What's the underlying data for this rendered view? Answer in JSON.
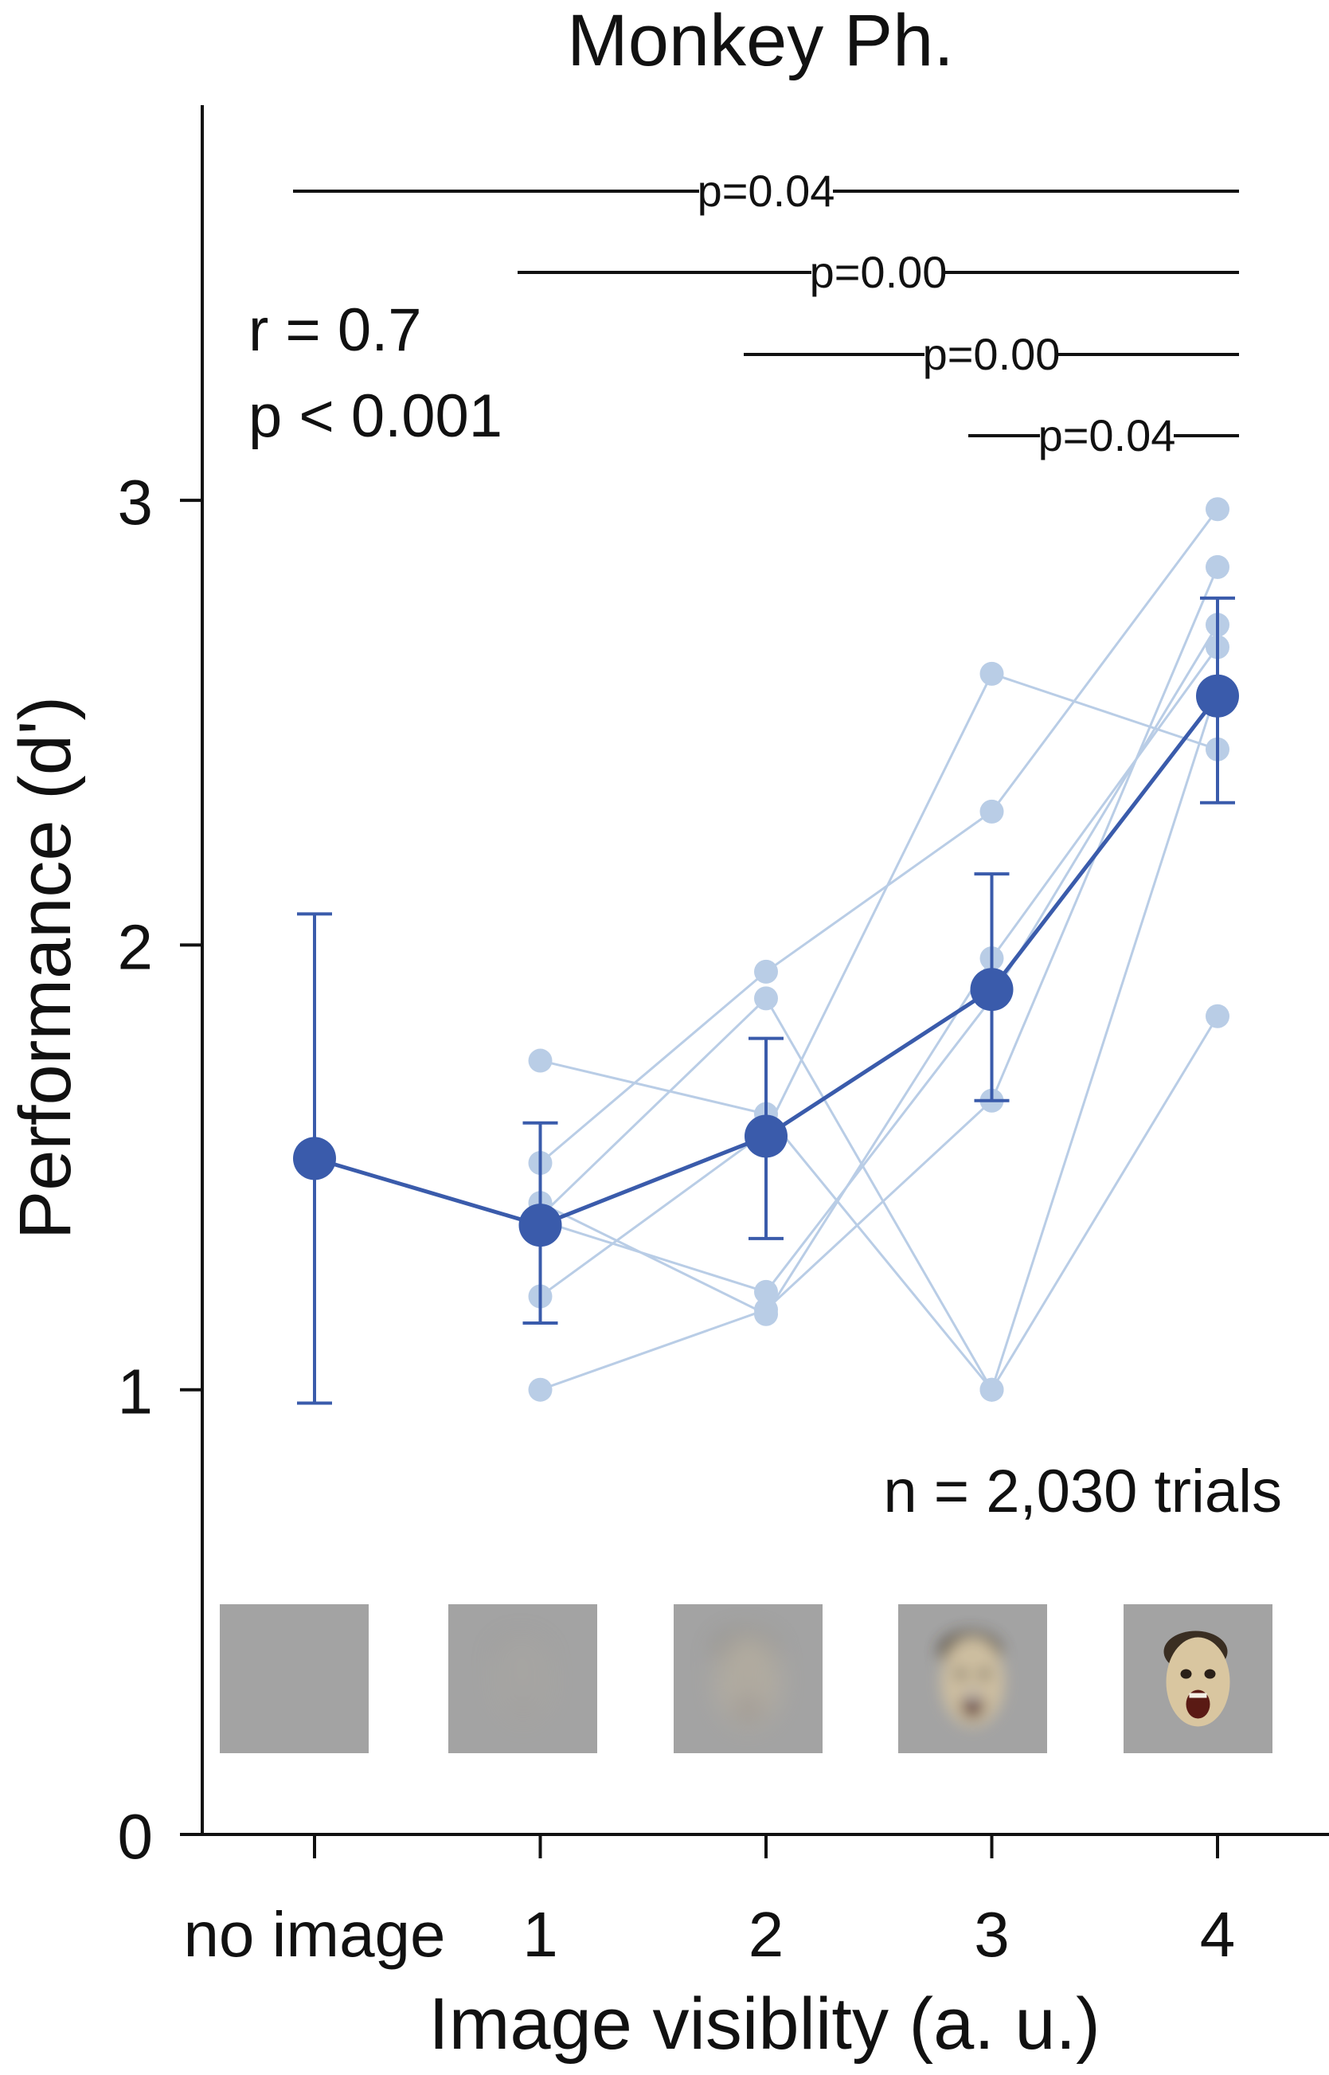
{
  "chart_data": {
    "type": "line",
    "title": "Monkey Ph.",
    "xlabel": "Image visiblity (a. u.)",
    "ylabel": "Performance (d')",
    "categories": [
      "no image",
      "1",
      "2",
      "3",
      "4"
    ],
    "yticks": [
      0,
      1,
      2,
      3
    ],
    "ytick_labels": [
      "0",
      "1",
      "2",
      "3"
    ],
    "ylim": [
      0,
      3.9
    ],
    "grid": false,
    "mean": {
      "values": [
        1.52,
        1.37,
        1.57,
        1.9,
        2.56
      ],
      "err_low": [
        0.97,
        1.15,
        1.34,
        1.65,
        2.32
      ],
      "err_high": [
        2.07,
        1.6,
        1.79,
        2.16,
        2.78
      ],
      "color": "#3a5bab"
    },
    "sessions_color": "#b9cde6",
    "sessions": [
      {
        "values": [
          null,
          1.74,
          1.62,
          1.0,
          1.84
        ]
      },
      {
        "values": [
          null,
          1.51,
          1.94,
          2.3,
          2.98
        ]
      },
      {
        "values": [
          null,
          1.42,
          1.17,
          1.97,
          2.67
        ]
      },
      {
        "values": [
          null,
          1.0,
          1.18,
          1.65,
          2.85
        ]
      },
      {
        "values": [
          null,
          1.21,
          1.58,
          2.61,
          2.44
        ]
      },
      {
        "values": [
          null,
          1.38,
          1.22,
          1.88,
          2.72
        ]
      },
      {
        "values": [
          null,
          1.39,
          1.88,
          1.0,
          2.58
        ]
      }
    ],
    "significance": [
      {
        "from": 0,
        "to": 4,
        "label": "p=0.04"
      },
      {
        "from": 1,
        "to": 4,
        "label": "p=0.00"
      },
      {
        "from": 2,
        "to": 4,
        "label": "p=0.00"
      },
      {
        "from": 3,
        "to": 4,
        "label": "p=0.04"
      }
    ],
    "annotations": {
      "r": "r = 0.7",
      "p": "p < 0.001",
      "n": "n = 2,030 trials"
    },
    "stimulus_thumbnails": [
      {
        "category": "no image",
        "visibility": 0.0
      },
      {
        "category": "1",
        "visibility": 0.06
      },
      {
        "category": "2",
        "visibility": 0.3
      },
      {
        "category": "3",
        "visibility": 0.75
      },
      {
        "category": "4",
        "visibility": 1.0
      }
    ]
  }
}
